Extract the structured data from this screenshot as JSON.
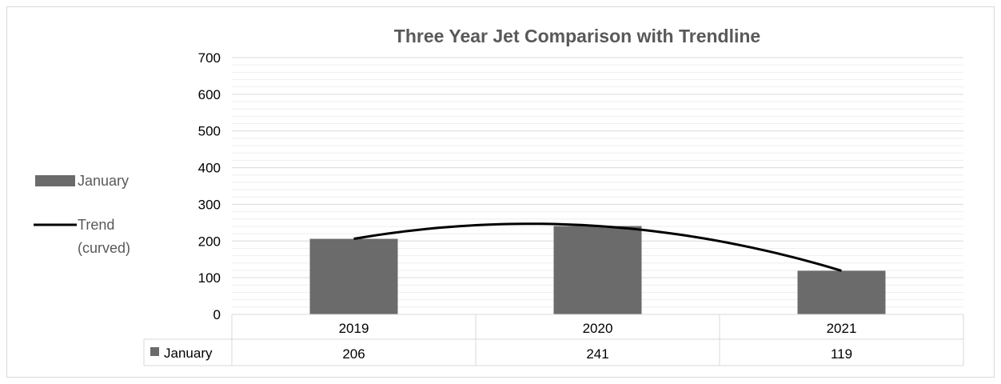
{
  "chart_data": {
    "type": "bar",
    "title": "Three Year Jet Comparison with Trendline",
    "categories": [
      "2019",
      "2020",
      "2021"
    ],
    "series": [
      {
        "name": "January",
        "values": [
          206,
          241,
          119
        ],
        "color": "#6b6b6b"
      }
    ],
    "trend": {
      "name": "Trend\n(curved)",
      "values": [
        206,
        241,
        119
      ],
      "color": "#000000"
    },
    "ylim": [
      0,
      700
    ],
    "yticks": [
      0,
      100,
      200,
      300,
      400,
      500,
      600,
      700
    ],
    "minor_grid_step": 20,
    "grid": true,
    "legend_position": "left",
    "data_table": true,
    "colors": {
      "gridline": "#d9d9d9",
      "minor_gridline": "#eeeeee",
      "text": "#595959",
      "table_border": "#d9d9d9"
    }
  }
}
